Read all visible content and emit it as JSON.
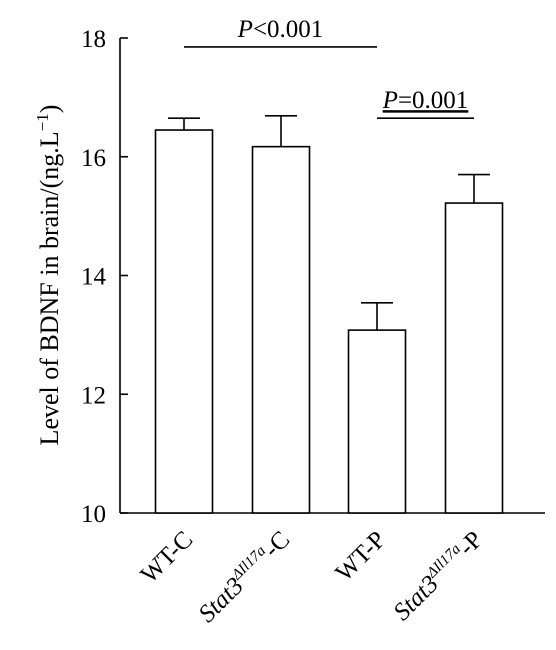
{
  "chart_data": {
    "type": "bar",
    "title": "",
    "xlabel": "",
    "ylabel": "Level of BDNF in brain/(ng.L",
    "ylabel_sup": "−1",
    "ylabel_close": ")",
    "ylim": [
      10,
      18
    ],
    "yticks": [
      10,
      12,
      14,
      16,
      18
    ],
    "categories": [
      {
        "main": "WT-C",
        "sup": "",
        "suffix": "",
        "italic_main": false
      },
      {
        "main": "Stat3",
        "sup": "ΔIl17a",
        "suffix": "-C",
        "italic_main": true
      },
      {
        "main": "WT-P",
        "sup": "",
        "suffix": "",
        "italic_main": false
      },
      {
        "main": "Stat3",
        "sup": "ΔIl17a",
        "suffix": "-P",
        "italic_main": true
      }
    ],
    "values": [
      16.45,
      16.17,
      13.08,
      15.22
    ],
    "errors": [
      0.2,
      0.52,
      0.46,
      0.48
    ],
    "significance": [
      {
        "from": 0,
        "to": 2,
        "level": 17.85,
        "p_symbol": "P",
        "p_rest": "<0.001",
        "underline": false
      },
      {
        "from": 2,
        "to": 3,
        "level": 16.65,
        "p_symbol": "P",
        "p_rest": "=0.001",
        "underline": true
      }
    ],
    "bar_fill": "#ffffff",
    "bar_stroke": "#000000",
    "grid": false,
    "legend": "none"
  }
}
